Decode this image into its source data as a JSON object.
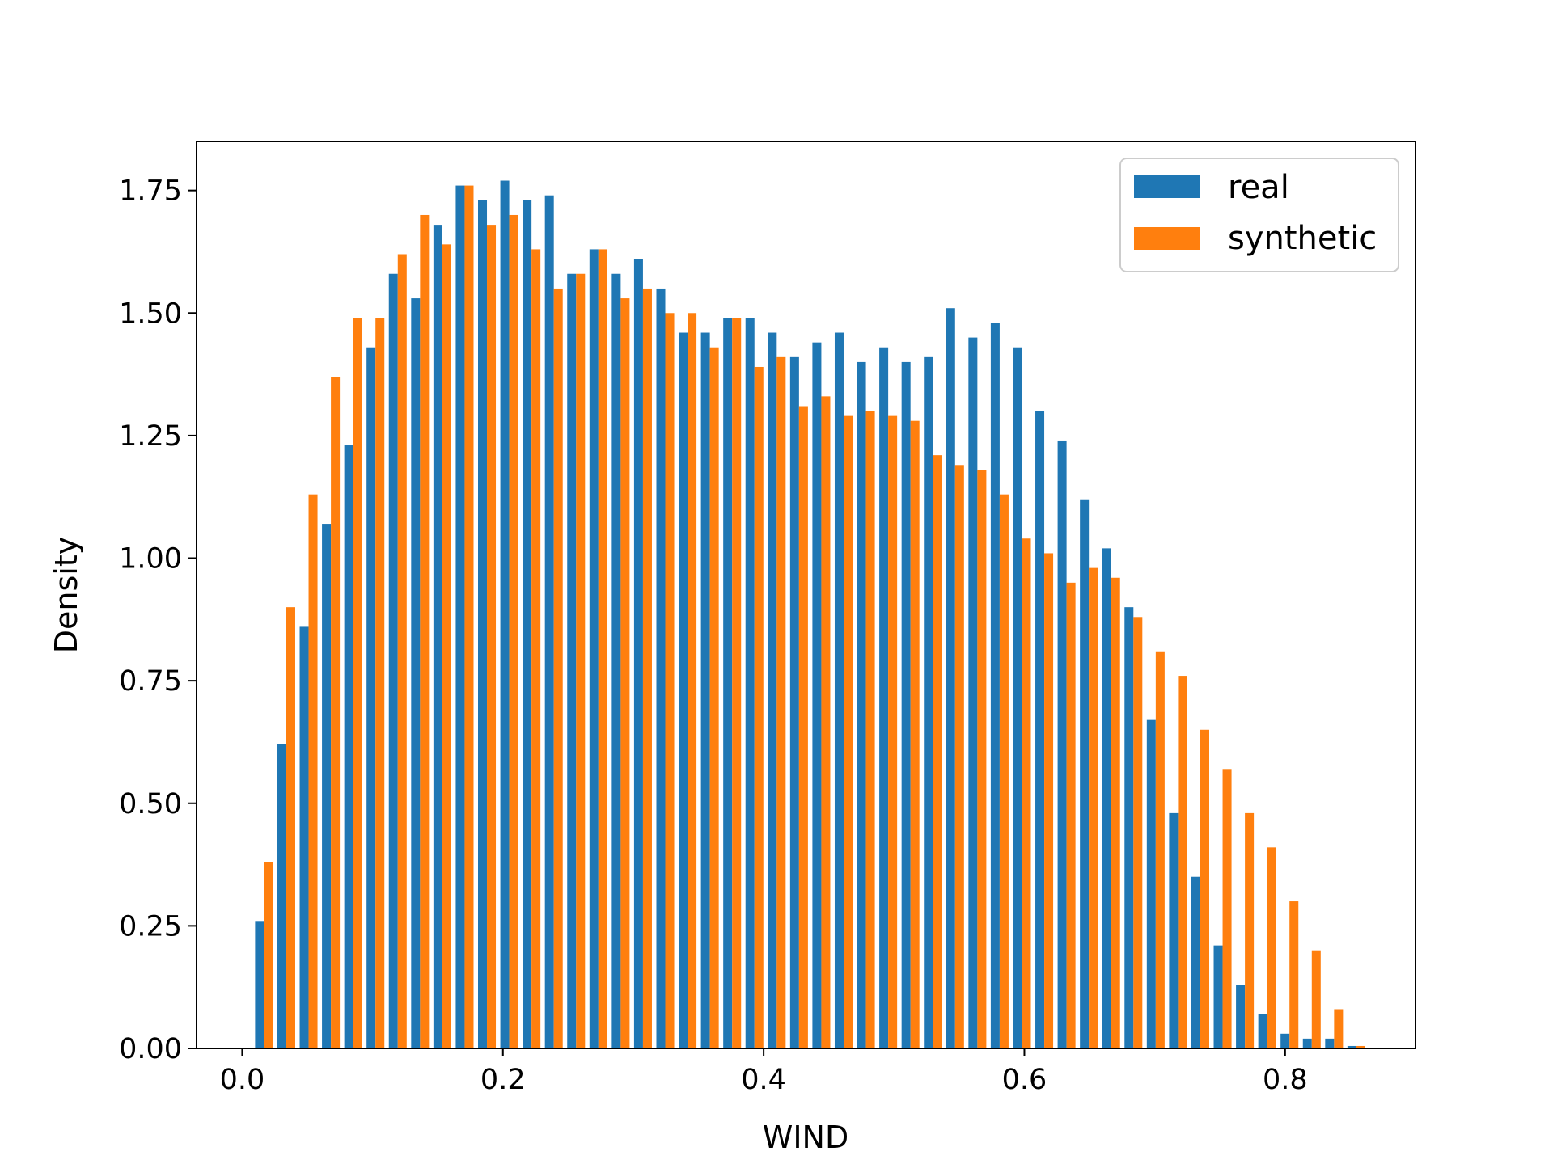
{
  "chart_data": {
    "type": "bar",
    "xlabel": "WIND",
    "ylabel": "Density",
    "xlim": [
      -0.035,
      0.9
    ],
    "ylim": [
      0,
      1.85
    ],
    "xticks": [
      0.0,
      0.2,
      0.4,
      0.6,
      0.8
    ],
    "xtick_labels": [
      "0.0",
      "0.2",
      "0.4",
      "0.6",
      "0.8"
    ],
    "yticks": [
      0.0,
      0.25,
      0.5,
      0.75,
      1.0,
      1.25,
      1.5,
      1.75
    ],
    "ytick_labels": [
      "0.00",
      "0.25",
      "0.50",
      "0.75",
      "1.00",
      "1.25",
      "1.50",
      "1.75"
    ],
    "grid": false,
    "legend_position": "top-right",
    "bin_start": 0.0082,
    "bin_width": 0.0171,
    "series": [
      {
        "name": "real",
        "color": "#1f77b4",
        "values": [
          0.26,
          0.62,
          0.86,
          1.07,
          1.23,
          1.43,
          1.58,
          1.53,
          1.68,
          1.76,
          1.73,
          1.77,
          1.73,
          1.74,
          1.58,
          1.63,
          1.58,
          1.61,
          1.55,
          1.46,
          1.46,
          1.49,
          1.49,
          1.46,
          1.41,
          1.44,
          1.46,
          1.4,
          1.43,
          1.4,
          1.41,
          1.51,
          1.45,
          1.48,
          1.43,
          1.3,
          1.24,
          1.12,
          1.02,
          0.9,
          0.67,
          0.48,
          0.35,
          0.21,
          0.13,
          0.07,
          0.03,
          0.02,
          0.02,
          0.005
        ]
      },
      {
        "name": "synthetic",
        "color": "#ff7f0e",
        "values": [
          0.38,
          0.9,
          1.13,
          1.37,
          1.49,
          1.49,
          1.62,
          1.7,
          1.64,
          1.76,
          1.68,
          1.7,
          1.63,
          1.55,
          1.58,
          1.63,
          1.53,
          1.55,
          1.5,
          1.5,
          1.43,
          1.49,
          1.39,
          1.41,
          1.31,
          1.33,
          1.29,
          1.3,
          1.29,
          1.28,
          1.21,
          1.19,
          1.18,
          1.13,
          1.04,
          1.01,
          0.95,
          0.98,
          0.96,
          0.88,
          0.81,
          0.76,
          0.65,
          0.57,
          0.48,
          0.41,
          0.3,
          0.2,
          0.08,
          0.005
        ]
      }
    ]
  }
}
